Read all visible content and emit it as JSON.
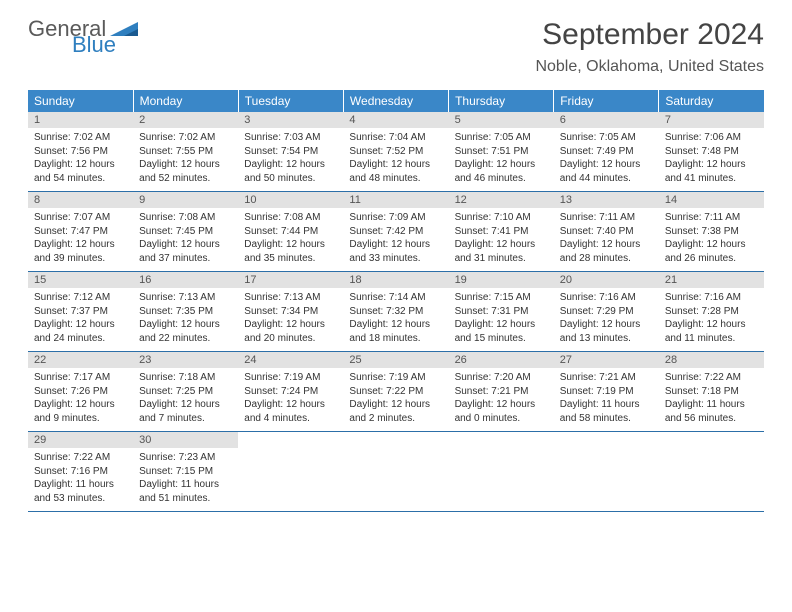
{
  "brand": {
    "general": "General",
    "blue": "Blue"
  },
  "title": "September 2024",
  "location": "Noble, Oklahoma, United States",
  "colors": {
    "header_bg": "#3a87c8",
    "header_text": "#ffffff",
    "daynum_bg": "#e2e2e2",
    "daynum_text": "#555555",
    "row_border": "#2c6fa8",
    "body_text": "#333333",
    "title_text": "#444444",
    "location_text": "#555555",
    "logo_gray": "#5a5a5a",
    "logo_blue": "#2f7fbf",
    "page_bg": "#ffffff"
  },
  "typography": {
    "title_fontsize": 30,
    "location_fontsize": 16,
    "header_fontsize": 12,
    "daynum_fontsize": 11,
    "body_fontsize": 10
  },
  "day_headers": [
    "Sunday",
    "Monday",
    "Tuesday",
    "Wednesday",
    "Thursday",
    "Friday",
    "Saturday"
  ],
  "weeks": [
    [
      {
        "n": "1",
        "sr": "7:02 AM",
        "ss": "7:56 PM",
        "dl": "12 hours and 54 minutes."
      },
      {
        "n": "2",
        "sr": "7:02 AM",
        "ss": "7:55 PM",
        "dl": "12 hours and 52 minutes."
      },
      {
        "n": "3",
        "sr": "7:03 AM",
        "ss": "7:54 PM",
        "dl": "12 hours and 50 minutes."
      },
      {
        "n": "4",
        "sr": "7:04 AM",
        "ss": "7:52 PM",
        "dl": "12 hours and 48 minutes."
      },
      {
        "n": "5",
        "sr": "7:05 AM",
        "ss": "7:51 PM",
        "dl": "12 hours and 46 minutes."
      },
      {
        "n": "6",
        "sr": "7:05 AM",
        "ss": "7:49 PM",
        "dl": "12 hours and 44 minutes."
      },
      {
        "n": "7",
        "sr": "7:06 AM",
        "ss": "7:48 PM",
        "dl": "12 hours and 41 minutes."
      }
    ],
    [
      {
        "n": "8",
        "sr": "7:07 AM",
        "ss": "7:47 PM",
        "dl": "12 hours and 39 minutes."
      },
      {
        "n": "9",
        "sr": "7:08 AM",
        "ss": "7:45 PM",
        "dl": "12 hours and 37 minutes."
      },
      {
        "n": "10",
        "sr": "7:08 AM",
        "ss": "7:44 PM",
        "dl": "12 hours and 35 minutes."
      },
      {
        "n": "11",
        "sr": "7:09 AM",
        "ss": "7:42 PM",
        "dl": "12 hours and 33 minutes."
      },
      {
        "n": "12",
        "sr": "7:10 AM",
        "ss": "7:41 PM",
        "dl": "12 hours and 31 minutes."
      },
      {
        "n": "13",
        "sr": "7:11 AM",
        "ss": "7:40 PM",
        "dl": "12 hours and 28 minutes."
      },
      {
        "n": "14",
        "sr": "7:11 AM",
        "ss": "7:38 PM",
        "dl": "12 hours and 26 minutes."
      }
    ],
    [
      {
        "n": "15",
        "sr": "7:12 AM",
        "ss": "7:37 PM",
        "dl": "12 hours and 24 minutes."
      },
      {
        "n": "16",
        "sr": "7:13 AM",
        "ss": "7:35 PM",
        "dl": "12 hours and 22 minutes."
      },
      {
        "n": "17",
        "sr": "7:13 AM",
        "ss": "7:34 PM",
        "dl": "12 hours and 20 minutes."
      },
      {
        "n": "18",
        "sr": "7:14 AM",
        "ss": "7:32 PM",
        "dl": "12 hours and 18 minutes."
      },
      {
        "n": "19",
        "sr": "7:15 AM",
        "ss": "7:31 PM",
        "dl": "12 hours and 15 minutes."
      },
      {
        "n": "20",
        "sr": "7:16 AM",
        "ss": "7:29 PM",
        "dl": "12 hours and 13 minutes."
      },
      {
        "n": "21",
        "sr": "7:16 AM",
        "ss": "7:28 PM",
        "dl": "12 hours and 11 minutes."
      }
    ],
    [
      {
        "n": "22",
        "sr": "7:17 AM",
        "ss": "7:26 PM",
        "dl": "12 hours and 9 minutes."
      },
      {
        "n": "23",
        "sr": "7:18 AM",
        "ss": "7:25 PM",
        "dl": "12 hours and 7 minutes."
      },
      {
        "n": "24",
        "sr": "7:19 AM",
        "ss": "7:24 PM",
        "dl": "12 hours and 4 minutes."
      },
      {
        "n": "25",
        "sr": "7:19 AM",
        "ss": "7:22 PM",
        "dl": "12 hours and 2 minutes."
      },
      {
        "n": "26",
        "sr": "7:20 AM",
        "ss": "7:21 PM",
        "dl": "12 hours and 0 minutes."
      },
      {
        "n": "27",
        "sr": "7:21 AM",
        "ss": "7:19 PM",
        "dl": "11 hours and 58 minutes."
      },
      {
        "n": "28",
        "sr": "7:22 AM",
        "ss": "7:18 PM",
        "dl": "11 hours and 56 minutes."
      }
    ],
    [
      {
        "n": "29",
        "sr": "7:22 AM",
        "ss": "7:16 PM",
        "dl": "11 hours and 53 minutes."
      },
      {
        "n": "30",
        "sr": "7:23 AM",
        "ss": "7:15 PM",
        "dl": "11 hours and 51 minutes."
      },
      null,
      null,
      null,
      null,
      null
    ]
  ],
  "labels": {
    "sunrise": "Sunrise:",
    "sunset": "Sunset:",
    "daylight": "Daylight:"
  }
}
